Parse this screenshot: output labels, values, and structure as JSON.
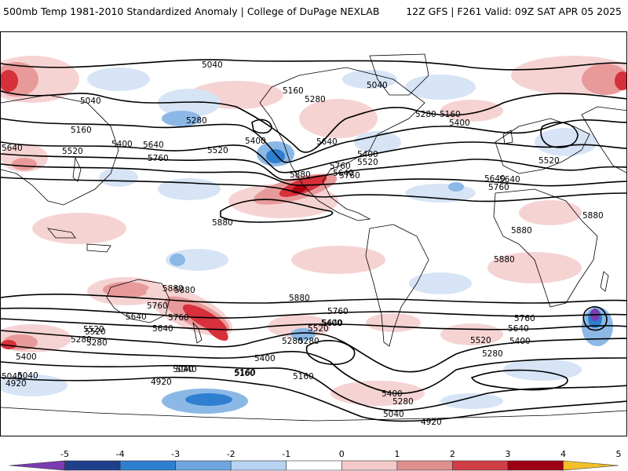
{
  "header": {
    "left_title": "500mb Temp 1981-2010 Standardized Anomaly | College of DuPage NEXLAB",
    "right_title": "12Z GFS | F261 Valid: 09Z SAT APR 05 2025"
  },
  "map": {
    "projection": "global-cylindrical",
    "field": "500mb temperature standardized anomaly",
    "contour_field": "500mb geopotential height (dam-meters)",
    "contour_labels": [
      "5040",
      "5040",
      "5040",
      "5160",
      "5280",
      "5160",
      "5400",
      "5280",
      "5640",
      "5520",
      "5640",
      "5760",
      "5400",
      "5520",
      "5640",
      "5760",
      "5880",
      "5880",
      "5400",
      "5520",
      "5640",
      "5760",
      "5280",
      "5160",
      "5400",
      "5640",
      "5520",
      "5760",
      "5640",
      "5880",
      "5880",
      "5880",
      "5880",
      "5880",
      "5760",
      "5640",
      "5520",
      "5280",
      "5400",
      "5040",
      "4920",
      "5040",
      "4920",
      "5040",
      "5160",
      "5280",
      "5760",
      "5640",
      "5520",
      "5400",
      "5280",
      "5160",
      "5400",
      "5280",
      "5040",
      "4920",
      "5760",
      "5640",
      "5400",
      "5520",
      "5280",
      "5400",
      "5520",
      "5640",
      "5760",
      "5880",
      "5280",
      "5160",
      "5040"
    ],
    "colors": {
      "coastline": "#000000",
      "contour": "#000000",
      "warm_light": "#f6d3d3",
      "warm_med": "#e89a9a",
      "warm_strong": "#d7303a",
      "warm_deep": "#b00010",
      "cold_light": "#d6e4f5",
      "cold_med": "#8cb8e6",
      "cold_strong": "#2f7fd0",
      "cold_deep": "#7a3cb0"
    }
  },
  "colorbar": {
    "labels": [
      "-5",
      "-4",
      "-3",
      "-2",
      "-1",
      "0",
      "1",
      "2",
      "3",
      "4",
      "5"
    ],
    "colors": [
      "#7a3cb0",
      "#1f3e8c",
      "#2f7fd0",
      "#6fa6e0",
      "#b7d3f1",
      "#ffffff",
      "#f4c9c9",
      "#e08d8d",
      "#cf3f45",
      "#9e0014",
      "#f2c02a"
    ]
  }
}
